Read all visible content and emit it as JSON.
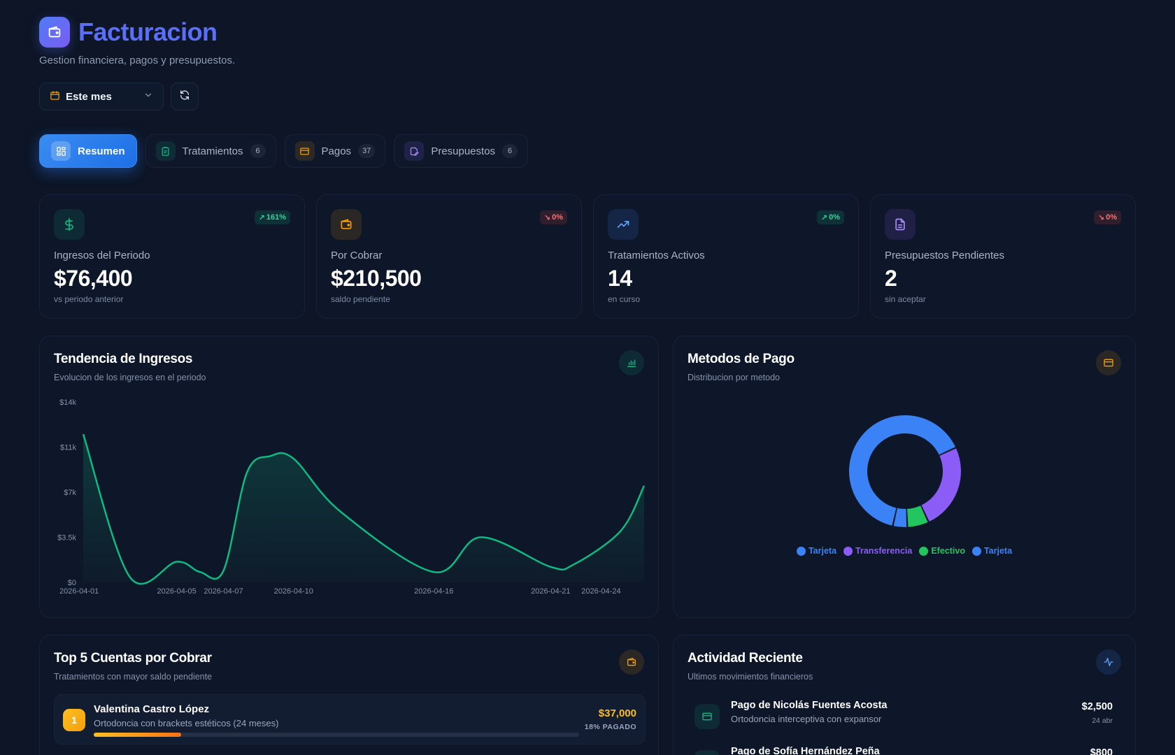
{
  "header": {
    "title": "Facturacion",
    "subtitle": "Gestion financiera, pagos y presupuestos.",
    "brand_icon": "wallet-icon"
  },
  "controls": {
    "period_select": "Este mes",
    "refresh_icon": "refresh-icon"
  },
  "tabs": [
    {
      "label": "Resumen",
      "icon": "grid-icon",
      "active": true
    },
    {
      "label": "Tratamientos",
      "icon": "clipboard-icon",
      "badge": "6"
    },
    {
      "label": "Pagos",
      "icon": "credit-card-icon",
      "badge": "37"
    },
    {
      "label": "Presupuestos",
      "icon": "edit-document-icon",
      "badge": "6"
    }
  ],
  "stats": [
    {
      "label": "Ingresos del Periodo",
      "value": "$76,400",
      "sub": "vs periodo anterior",
      "badge": "161%",
      "trend": "up",
      "icon": "dollar-icon",
      "color": "#10b981"
    },
    {
      "label": "Por Cobrar",
      "value": "$210,500",
      "sub": "saldo pendiente",
      "badge": "0%",
      "trend": "down",
      "icon": "wallet-icon",
      "color": "#f59e0b"
    },
    {
      "label": "Tratamientos Activos",
      "value": "14",
      "sub": "en curso",
      "badge": "0%",
      "trend": "up",
      "icon": "trending-up-icon",
      "color": "#3b82f6"
    },
    {
      "label": "Presupuestos Pendientes",
      "value": "2",
      "sub": "sin aceptar",
      "badge": "0%",
      "trend": "down",
      "icon": "document-icon",
      "color": "#8b5cf6"
    }
  ],
  "trend": {
    "title": "Tendencia de Ingresos",
    "subtitle": "Evolucion de los ingresos en el periodo",
    "icon": "bar-chart-icon"
  },
  "methods": {
    "title": "Metodos de Pago",
    "subtitle": "Distribucion por metodo",
    "icon": "credit-card-icon"
  },
  "chart_data": [
    {
      "type": "area",
      "x": [
        "2026-04-01",
        "2026-04-03",
        "2026-04-05",
        "2026-04-06",
        "2026-04-07",
        "2026-04-08",
        "2026-04-09",
        "2026-04-10",
        "2026-04-12",
        "2026-04-16",
        "2026-04-18",
        "2026-04-21",
        "2026-04-22",
        "2026-04-24",
        "2026-04-25"
      ],
      "series": [
        {
          "values": [
            11500,
            400,
            1600,
            800,
            900,
            8500,
            9800,
            9600,
            5500,
            800,
            3500,
            1200,
            1400,
            4000,
            7500
          ]
        }
      ],
      "y_ticks": [
        "$0",
        "$3.5k",
        "$7k",
        "$11k",
        "$14k"
      ],
      "x_ticks": [
        "2026-04-01",
        "2026-04-05",
        "2026-04-07",
        "2026-04-10",
        "2026-04-16",
        "2026-04-21",
        "2026-04-24"
      ],
      "ylim": [
        0,
        14000
      ],
      "color": "#10b981"
    },
    {
      "type": "pie",
      "categories": [
        "Tarjeta",
        "Transferencia",
        "Efectivo",
        "Tarjeta"
      ],
      "values": [
        62,
        24,
        6,
        4
      ],
      "colors": [
        "#3b82f6",
        "#8b5cf6",
        "#22c55e",
        "#3b82f6"
      ],
      "legend": "bottom"
    }
  ],
  "top5": {
    "title": "Top 5 Cuentas por Cobrar",
    "subtitle": "Tratamientos con mayor saldo pendiente",
    "icon": "wallet-icon",
    "items": [
      {
        "rank": "1",
        "name": "Valentina Castro López",
        "desc": "Ortodoncia con brackets estéticos (24 meses)",
        "amount": "$37,000",
        "paid_label": "18% PAGADO",
        "paid_fraction": 0.18
      }
    ]
  },
  "activity": {
    "title": "Actividad Reciente",
    "subtitle": "Ultimos movimientos financieros",
    "icon": "activity-icon",
    "items": [
      {
        "title": "Pago de Nicolás Fuentes Acosta",
        "desc": "Ortodoncia interceptiva con expansor",
        "amount": "$2,500",
        "date": "24 abr"
      },
      {
        "title": "Pago de Sofía Hernández Peña",
        "desc": "",
        "amount": "$800",
        "date": ""
      }
    ]
  }
}
